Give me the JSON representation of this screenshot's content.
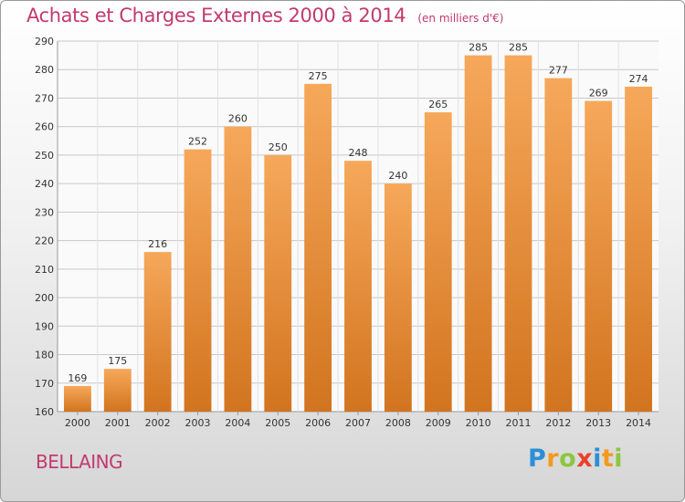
{
  "title": "Achats et Charges Externes 2000 à 2014",
  "subtitle": "(en milliers d'€)",
  "town": "BELLAING",
  "logo": {
    "name": "Proxiti"
  },
  "colors": {
    "title": "#c23a6e",
    "bar_top": "#f6a85a",
    "bar_bottom": "#d2741f",
    "grid": "#c8c8c8"
  },
  "chart_data": {
    "type": "bar",
    "title": "Achats et Charges Externes 2000 à 2014",
    "subtitle": "(en milliers d'€)",
    "categories": [
      "2000",
      "2001",
      "2002",
      "2003",
      "2004",
      "2005",
      "2006",
      "2007",
      "2008",
      "2009",
      "2010",
      "2011",
      "2012",
      "2013",
      "2014"
    ],
    "values": [
      169,
      175,
      216,
      252,
      260,
      250,
      275,
      248,
      240,
      265,
      285,
      285,
      277,
      269,
      274
    ],
    "ylim": [
      160,
      290
    ],
    "yticks": [
      160,
      170,
      180,
      190,
      200,
      210,
      220,
      230,
      240,
      250,
      260,
      270,
      280,
      290
    ],
    "grid": true,
    "data_labels": true
  }
}
